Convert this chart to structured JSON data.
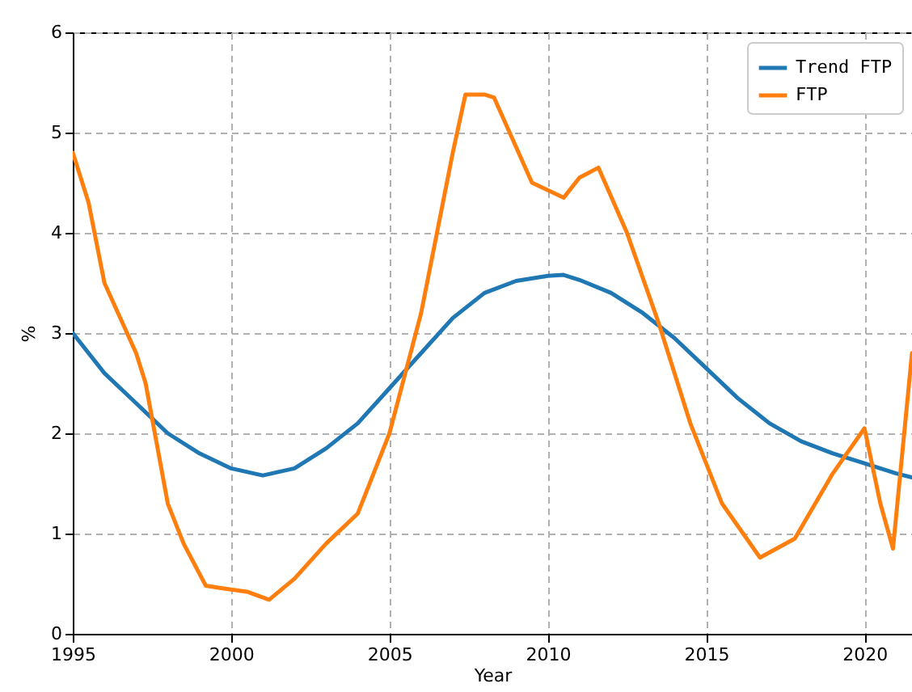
{
  "chart_data": {
    "type": "line",
    "xlabel": "Year",
    "ylabel": "%",
    "xlim": [
      1995,
      2021.5
    ],
    "ylim": [
      0,
      6
    ],
    "xticks": [
      1995,
      2000,
      2005,
      2010,
      2015,
      2020
    ],
    "yticks": [
      0,
      1,
      2,
      3,
      4,
      5,
      6
    ],
    "grid": true,
    "legend": "top right",
    "line_style": "solid",
    "marker": "none",
    "series": [
      {
        "name": "Trend FTP",
        "color": "#1f77b4",
        "x": [
          1995,
          1996,
          1997,
          1998,
          1999,
          2000,
          2001,
          2002,
          2003,
          2004,
          2005,
          2006,
          2007,
          2008,
          2009,
          2010,
          2010.5,
          2011,
          2012,
          2013,
          2014,
          2015,
          2016,
          2017,
          2018,
          2019,
          2020,
          2021,
          2021.5
        ],
        "values": [
          3.0,
          2.6,
          2.3,
          2.0,
          1.8,
          1.65,
          1.58,
          1.65,
          1.85,
          2.1,
          2.45,
          2.8,
          3.15,
          3.4,
          3.52,
          3.57,
          3.58,
          3.53,
          3.4,
          3.2,
          2.95,
          2.65,
          2.35,
          2.1,
          1.92,
          1.8,
          1.7,
          1.6,
          1.56
        ]
      },
      {
        "name": "FTP",
        "color": "#ff7f0e",
        "x": [
          1995,
          1995.5,
          1996,
          1997,
          1997.3,
          1998,
          1998.5,
          1999.2,
          1999.6,
          2000.5,
          2001.2,
          2002,
          2003,
          2004,
          2004.5,
          2005,
          2006,
          2007,
          2007.4,
          2008,
          2008.3,
          2009.5,
          2010.5,
          2011,
          2011.6,
          2012.5,
          2013.5,
          2014.5,
          2015.5,
          2016.7,
          2017.8,
          2019,
          2020,
          2020.5,
          2020.9,
          2021.5
        ],
        "values": [
          4.8,
          4.3,
          3.5,
          2.8,
          2.5,
          1.3,
          0.9,
          0.48,
          0.46,
          0.42,
          0.34,
          0.55,
          0.9,
          1.2,
          1.6,
          2.0,
          3.2,
          4.8,
          5.38,
          5.38,
          5.35,
          4.5,
          4.35,
          4.55,
          4.65,
          4.0,
          3.1,
          2.1,
          1.3,
          0.76,
          0.95,
          1.6,
          2.05,
          1.3,
          0.85,
          2.8
        ]
      }
    ]
  }
}
